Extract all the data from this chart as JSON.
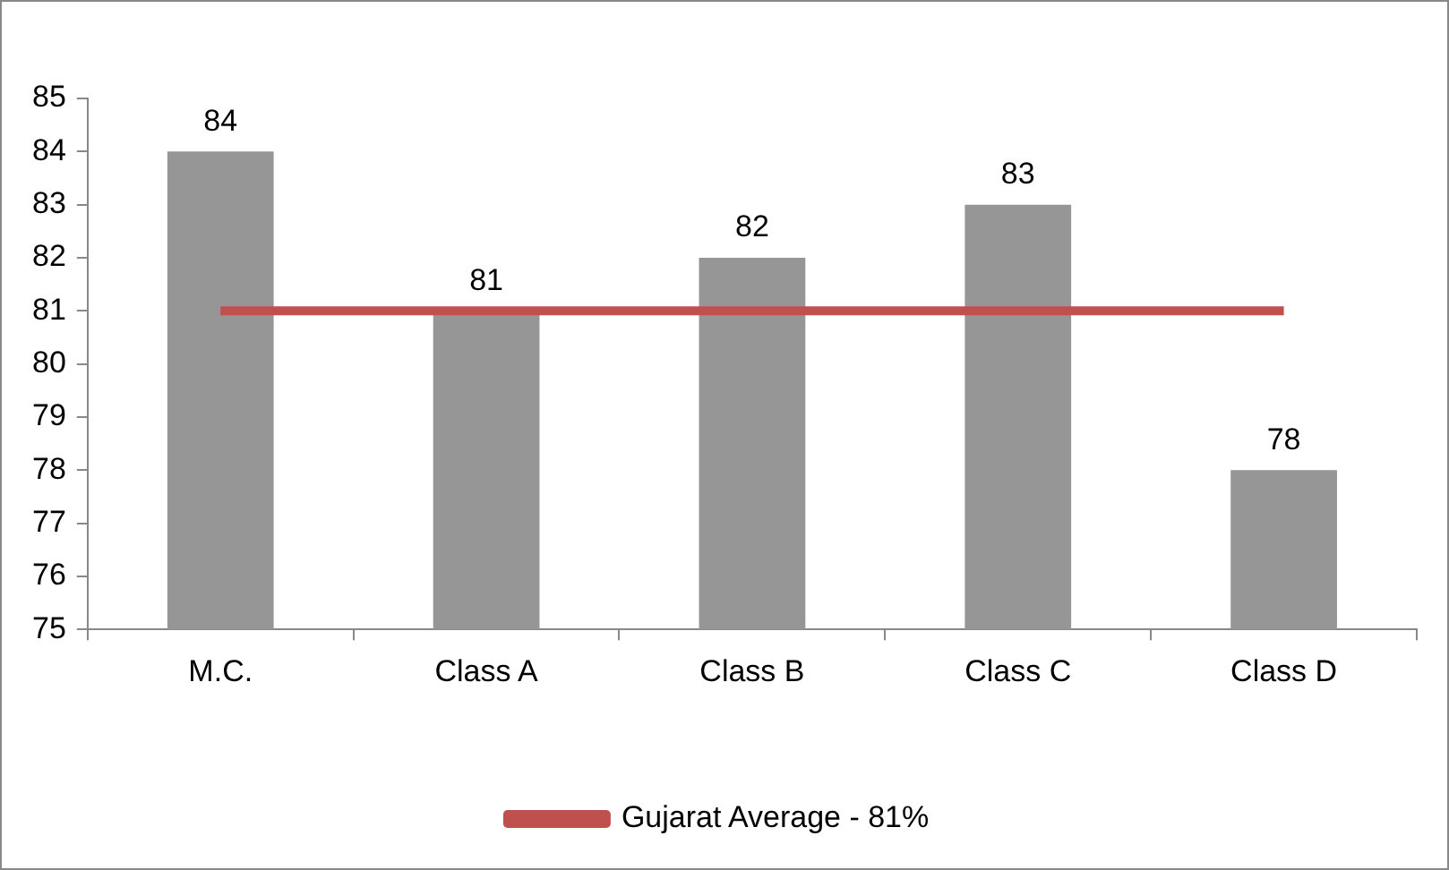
{
  "chart_data": {
    "type": "bar",
    "categories": [
      "M.C.",
      "Class A",
      "Class B",
      "Class C",
      "Class D"
    ],
    "series": [
      {
        "color": "#969696",
        "values": [
          84,
          81,
          82,
          83,
          78
        ],
        "value_labels": [
          "84",
          "81",
          "82",
          "83",
          "78"
        ]
      },
      {
        "type": "line",
        "name": "Gujarat Average - 81%",
        "color": "#c0504d",
        "values": [
          81,
          81,
          81,
          81,
          81
        ]
      }
    ],
    "ylim": [
      75,
      85
    ],
    "yticks": [
      75,
      76,
      77,
      78,
      79,
      80,
      81,
      82,
      83,
      84,
      85
    ],
    "grid": false,
    "legend": "bottom",
    "marker": "none",
    "line_style": "solid"
  }
}
